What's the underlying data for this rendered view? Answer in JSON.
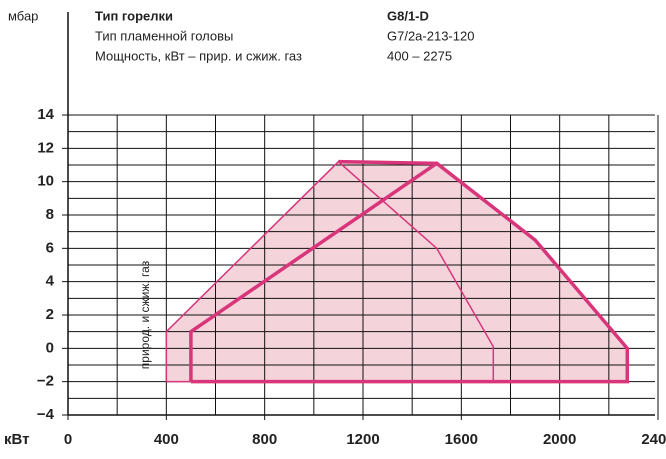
{
  "chart_data": {
    "type": "polygon",
    "header": [
      {
        "label": "Тип горелки",
        "value": "G8/1-D"
      },
      {
        "label": "Тип пламенной головы",
        "value": "G7/2a-213-120"
      },
      {
        "label": "Мощность, кВт – прир. и сжиж. газ",
        "value": "400 – 2275"
      }
    ],
    "ylabel": "мбар",
    "xlabel": "кВт",
    "annotation": "природ. и сжиж. газ",
    "xlim": [
      0,
      2400
    ],
    "ylim": [
      -4,
      14
    ],
    "xticks": [
      0,
      400,
      800,
      1200,
      1600,
      2000,
      2400
    ],
    "yticks": [
      {
        "value": -4,
        "label": "−4"
      },
      {
        "value": -2,
        "label": "−2"
      },
      0,
      2,
      4,
      6,
      8,
      10,
      12,
      14
    ],
    "xgrid": [
      200,
      400,
      600,
      800,
      1000,
      1200,
      1400,
      1600,
      1800,
      2000,
      2200,
      2400
    ],
    "ygrid": [
      -3,
      -2,
      -1,
      0,
      1,
      2,
      3,
      4,
      5,
      6,
      7,
      8,
      9,
      10,
      11,
      12,
      13,
      14
    ],
    "series": [
      {
        "x": [
          400,
          400,
          1100,
          1500,
          1900,
          2275,
          2275
        ],
        "values": [
          -2,
          1,
          11.2,
          11.1,
          6.5,
          0,
          -2
        ],
        "color": "#f4d3da",
        "fill": true
      },
      {
        "x": [
          400,
          400,
          1100,
          1500,
          1730,
          1730,
          400
        ],
        "values": [
          -2,
          1,
          11.2,
          6,
          0.1,
          -2,
          -2
        ],
        "color": "#d8357a",
        "width": 1.5
      },
      {
        "x": [
          500,
          500,
          1500,
          1900,
          2275,
          2275,
          500
        ],
        "values": [
          -2,
          1,
          11.1,
          6.5,
          0,
          -2,
          -2
        ],
        "color": "#d8357a",
        "width": 3.5
      },
      {
        "x": [
          1100,
          1500
        ],
        "values": [
          11.2,
          11.1
        ],
        "color": "#d8357a",
        "width": 3.5
      }
    ]
  }
}
